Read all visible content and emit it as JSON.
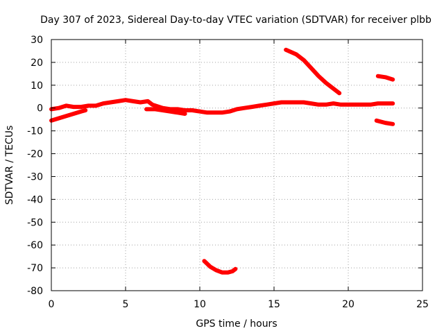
{
  "chart_data": {
    "type": "scatter",
    "title": "Day 307 of 2023, Sidereal Day-to-day VTEC variation (SDTVAR) for receiver plbb",
    "xlabel": "GPS time / hours",
    "ylabel": "SDTVAR / TECUs",
    "xlim": [
      0,
      25
    ],
    "ylim": [
      -80,
      30
    ],
    "xticks": [
      0,
      5,
      10,
      15,
      20,
      25
    ],
    "yticks": [
      30,
      20,
      10,
      0,
      -10,
      -20,
      -30,
      -40,
      -50,
      -60,
      -70,
      -80
    ],
    "grid": true,
    "legend": "none",
    "series_color": "#ff0000",
    "series": [
      {
        "name": "main-trace",
        "points": [
          [
            0,
            -0.5
          ],
          [
            0.5,
            0
          ],
          [
            1,
            1
          ],
          [
            1.5,
            0.5
          ],
          [
            2,
            0.5
          ],
          [
            2.5,
            1
          ],
          [
            3,
            1
          ],
          [
            3.5,
            2
          ],
          [
            4,
            2.5
          ],
          [
            4.5,
            3
          ],
          [
            5,
            3.5
          ],
          [
            5.5,
            3
          ],
          [
            6,
            2.5
          ],
          [
            6.5,
            3
          ],
          [
            6.8,
            1.5
          ],
          [
            7.5,
            0
          ],
          [
            8,
            -0.5
          ],
          [
            8.5,
            -0.5
          ],
          [
            9,
            -1
          ],
          [
            9.5,
            -1
          ],
          [
            10,
            -1.5
          ],
          [
            10.5,
            -2
          ],
          [
            11,
            -2
          ],
          [
            11.5,
            -2
          ],
          [
            12,
            -1.5
          ],
          [
            12.5,
            -0.5
          ],
          [
            13,
            0
          ],
          [
            13.5,
            0.5
          ],
          [
            14,
            1
          ],
          [
            14.5,
            1.5
          ],
          [
            15,
            2
          ],
          [
            15.5,
            2.5
          ],
          [
            16,
            2.5
          ],
          [
            16.5,
            2.5
          ],
          [
            17,
            2.5
          ],
          [
            17.5,
            2
          ],
          [
            18,
            1.5
          ],
          [
            18.5,
            1.5
          ],
          [
            19,
            2
          ],
          [
            19.5,
            1.5
          ],
          [
            20,
            1.5
          ],
          [
            20.5,
            1.5
          ],
          [
            21,
            1.5
          ],
          [
            21.5,
            1.5
          ],
          [
            22,
            2
          ],
          [
            22.5,
            2
          ],
          [
            23,
            2
          ]
        ]
      },
      {
        "name": "lower-early-trace",
        "points": [
          [
            0,
            -5.5
          ],
          [
            0.5,
            -4.5
          ],
          [
            1,
            -3.5
          ],
          [
            1.5,
            -2.5
          ],
          [
            2,
            -1.5
          ],
          [
            2.3,
            -1
          ]
        ]
      },
      {
        "name": "parallel-band-trace",
        "points": [
          [
            6.4,
            -0.5
          ],
          [
            7,
            -0.5
          ],
          [
            7.5,
            -1
          ],
          [
            8,
            -1.5
          ],
          [
            8.5,
            -2
          ],
          [
            9,
            -2.5
          ]
        ]
      },
      {
        "name": "descending-arc-trace",
        "points": [
          [
            15.8,
            25.5
          ],
          [
            16.5,
            23.5
          ],
          [
            17,
            21
          ],
          [
            17.5,
            17.5
          ],
          [
            18,
            14
          ],
          [
            18.5,
            11
          ],
          [
            19,
            8.5
          ],
          [
            19.4,
            6.5
          ]
        ]
      },
      {
        "name": "upper-late-trace",
        "points": [
          [
            22,
            14
          ],
          [
            22.5,
            13.5
          ],
          [
            23,
            12.5
          ]
        ]
      },
      {
        "name": "lower-late-trace",
        "points": [
          [
            21.9,
            -5.5
          ],
          [
            22.5,
            -6.5
          ],
          [
            23,
            -7
          ]
        ]
      },
      {
        "name": "bottom-dip-trace",
        "points": [
          [
            10.3,
            -67
          ],
          [
            10.7,
            -69.5
          ],
          [
            11.1,
            -71
          ],
          [
            11.5,
            -72
          ],
          [
            11.9,
            -72
          ],
          [
            12.2,
            -71.5
          ],
          [
            12.4,
            -70.5
          ]
        ]
      }
    ]
  }
}
